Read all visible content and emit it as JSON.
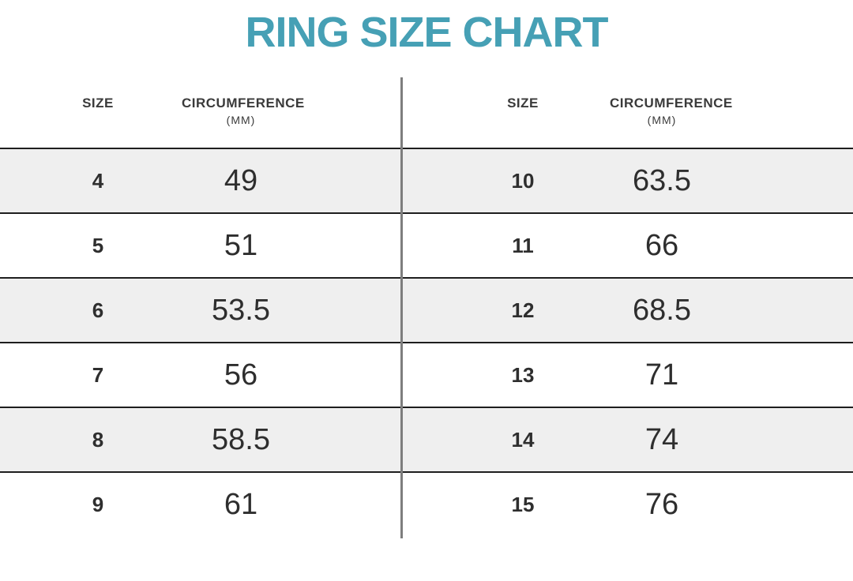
{
  "title": "RING SIZE CHART",
  "colors": {
    "title": "#46a0b5",
    "stripe": "#efefef",
    "line": "#1e1e1e",
    "divider": "#7e7e7e",
    "text": "#2e2e2e",
    "header-text": "#3a3a3a"
  },
  "tables": [
    {
      "headers": {
        "size": "SIZE",
        "circumference": "CIRCUMFERENCE",
        "unit": "(MM)"
      },
      "rows": [
        {
          "size": "4",
          "circumference": "49"
        },
        {
          "size": "5",
          "circumference": "51"
        },
        {
          "size": "6",
          "circumference": "53.5"
        },
        {
          "size": "7",
          "circumference": "56"
        },
        {
          "size": "8",
          "circumference": "58.5"
        },
        {
          "size": "9",
          "circumference": "61"
        }
      ]
    },
    {
      "headers": {
        "size": "SIZE",
        "circumference": "CIRCUMFERENCE",
        "unit": "(MM)"
      },
      "rows": [
        {
          "size": "10",
          "circumference": "63.5"
        },
        {
          "size": "11",
          "circumference": "66"
        },
        {
          "size": "12",
          "circumference": "68.5"
        },
        {
          "size": "13",
          "circumference": "71"
        },
        {
          "size": "14",
          "circumference": "74"
        },
        {
          "size": "15",
          "circumference": "76"
        }
      ]
    }
  ],
  "chart_data": {
    "type": "table",
    "title": "RING SIZE CHART",
    "columns": [
      "SIZE",
      "CIRCUMFERENCE (MM)"
    ],
    "left_table": [
      {
        "size": 4,
        "circumference_mm": 49
      },
      {
        "size": 5,
        "circumference_mm": 51
      },
      {
        "size": 6,
        "circumference_mm": 53.5
      },
      {
        "size": 7,
        "circumference_mm": 56
      },
      {
        "size": 8,
        "circumference_mm": 58.5
      },
      {
        "size": 9,
        "circumference_mm": 61
      }
    ],
    "right_table": [
      {
        "size": 10,
        "circumference_mm": 63.5
      },
      {
        "size": 11,
        "circumference_mm": 66
      },
      {
        "size": 12,
        "circumference_mm": 68.5
      },
      {
        "size": 13,
        "circumference_mm": 71
      },
      {
        "size": 14,
        "circumference_mm": 74
      },
      {
        "size": 15,
        "circumference_mm": 76
      }
    ],
    "layout": {
      "panels": 2,
      "striped_rows": true,
      "stripe_pattern": "odd-rows-gray"
    }
  }
}
